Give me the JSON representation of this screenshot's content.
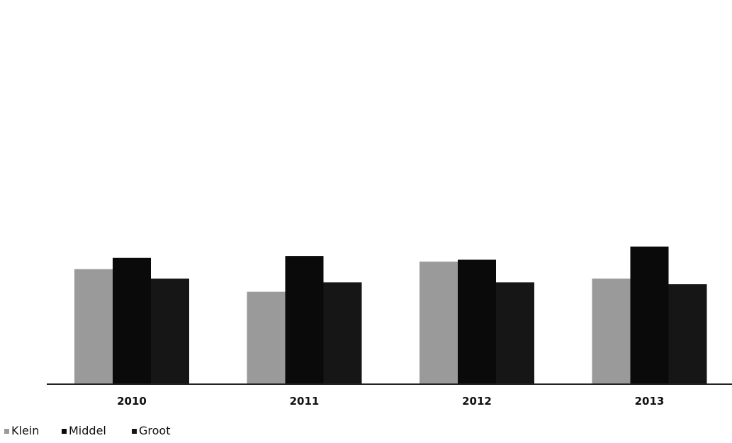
{
  "chart_data": {
    "type": "bar",
    "categories": [
      "2010",
      "2011",
      "2012",
      "2013"
    ],
    "series": [
      {
        "name": "Klein",
        "values": [
          30.5,
          24.5,
          32.5,
          28
        ]
      },
      {
        "name": "Middel",
        "values": [
          33.5,
          34,
          33,
          36.5
        ]
      },
      {
        "name": "Groot",
        "values": [
          28,
          27,
          27,
          26.5
        ]
      }
    ],
    "title": "",
    "xlabel": "",
    "ylabel": "",
    "ylim": [
      0,
      100
    ],
    "grid": false,
    "legend_position": "bottom-left",
    "colors": [
      "#9a9a9a",
      "#0a0a0a",
      "#161616"
    ]
  }
}
